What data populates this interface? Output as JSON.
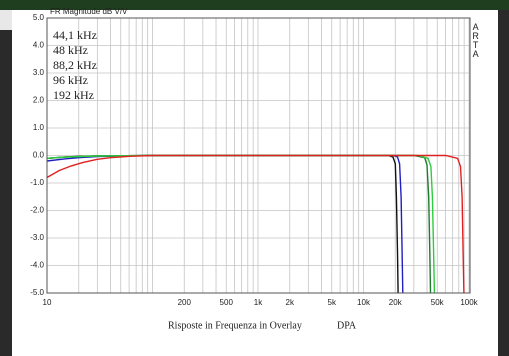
{
  "chart_data": {
    "type": "line",
    "title": "FR Magnitude dB V/V",
    "brand": "ARTA",
    "caption": "Risposte in Frequenza in Overlay",
    "caption_tag": "DPA",
    "log_x": true,
    "grid": true,
    "xlim": [
      10,
      100000
    ],
    "ylim": [
      -5,
      5
    ],
    "yticks": [
      {
        "value": 5,
        "label": "5.0"
      },
      {
        "value": 4,
        "label": "4.0"
      },
      {
        "value": 3,
        "label": "3.0"
      },
      {
        "value": 2,
        "label": "2.0"
      },
      {
        "value": 1,
        "label": "1.0"
      },
      {
        "value": 0,
        "label": "0.0"
      },
      {
        "value": -1,
        "label": "-1.0"
      },
      {
        "value": -2,
        "label": "-2.0"
      },
      {
        "value": -3,
        "label": "-3.0"
      },
      {
        "value": -4,
        "label": "-4.0"
      },
      {
        "value": -5,
        "label": "-5.0"
      }
    ],
    "xticks": [
      10,
      200,
      500,
      {
        "value": 1000,
        "label": "1k"
      },
      {
        "value": 2000,
        "label": "2k"
      },
      {
        "value": 5000,
        "label": "5k"
      },
      {
        "value": 10000,
        "label": "10k"
      },
      {
        "value": 20000,
        "label": "20k"
      },
      {
        "value": 50000,
        "label": "50k"
      },
      {
        "value": 100000,
        "label": "100k"
      }
    ],
    "xgrid": [
      10,
      20,
      30,
      40,
      50,
      60,
      70,
      80,
      90,
      100,
      200,
      300,
      400,
      500,
      600,
      700,
      800,
      900,
      1000,
      2000,
      3000,
      4000,
      5000,
      6000,
      7000,
      8000,
      9000,
      10000,
      20000,
      30000,
      40000,
      50000,
      60000,
      70000,
      80000,
      90000,
      100000
    ],
    "series": [
      {
        "name": "44,1 kHz",
        "color": "#111111",
        "x": [
          10,
          15,
          20,
          30,
          50,
          100,
          1000,
          10000,
          17000,
          19000,
          20000,
          20500,
          21000,
          21300
        ],
        "values": [
          -0.1,
          -0.05,
          -0.03,
          -0.02,
          -0.01,
          0,
          0,
          0,
          0,
          -0.05,
          -0.3,
          -1.5,
          -3.5,
          -5
        ]
      },
      {
        "name": "48 kHz",
        "color": "#2020c0",
        "x": [
          10,
          15,
          20,
          30,
          50,
          100,
          1000,
          10000,
          19000,
          21000,
          22000,
          22700,
          23200,
          23600
        ],
        "values": [
          -0.2,
          -0.12,
          -0.08,
          -0.04,
          -0.02,
          0,
          0,
          0,
          0,
          -0.05,
          -0.3,
          -1.5,
          -3.5,
          -5
        ]
      },
      {
        "name": "88,2 kHz",
        "color": "#1e7a2e",
        "x": [
          10,
          15,
          20,
          30,
          50,
          100,
          1000,
          10000,
          30000,
          38000,
          40000,
          41500,
          42500,
          43200
        ],
        "values": [
          -0.1,
          -0.06,
          -0.04,
          -0.02,
          -0.01,
          0,
          0,
          0,
          0,
          -0.08,
          -0.35,
          -1.5,
          -3.5,
          -5
        ]
      },
      {
        "name": "96 kHz",
        "color": "#2ecc40",
        "x": [
          10,
          15,
          20,
          30,
          50,
          100,
          1000,
          10000,
          33000,
          41000,
          43500,
          45000,
          46200,
          47000
        ],
        "values": [
          -0.1,
          -0.06,
          -0.04,
          -0.02,
          -0.01,
          0,
          0,
          0,
          0,
          -0.1,
          -0.4,
          -1.5,
          -3.5,
          -5
        ]
      },
      {
        "name": "192 kHz",
        "color": "#e02020",
        "x": [
          10,
          13,
          17,
          22,
          30,
          40,
          60,
          100,
          1000,
          10000,
          60000,
          78000,
          83000,
          86000,
          88000,
          89500
        ],
        "values": [
          -0.8,
          -0.55,
          -0.38,
          -0.25,
          -0.14,
          -0.08,
          -0.03,
          0,
          0,
          0,
          0,
          -0.1,
          -0.4,
          -1.5,
          -3.5,
          -5
        ]
      }
    ]
  }
}
